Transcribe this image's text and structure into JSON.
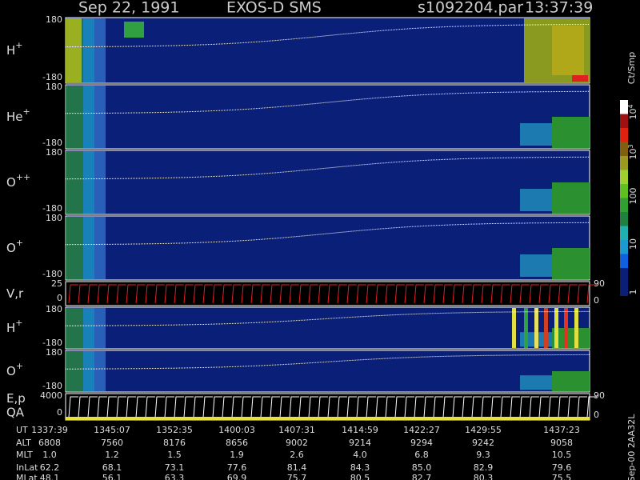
{
  "header": {
    "date": "Sep 22, 1991",
    "instrument": "EXOS-D SMS",
    "file": "s1092204.par",
    "time": "13:37:39"
  },
  "panels": [
    {
      "label": "H",
      "sup": "+",
      "ticks": [
        "180",
        "-180"
      ]
    },
    {
      "label": "He",
      "sup": "+",
      "ticks": [
        "180",
        "-180"
      ]
    },
    {
      "label": "O",
      "sup": "++",
      "ticks": [
        "180",
        "-180"
      ]
    },
    {
      "label": "O",
      "sup": "+",
      "ticks": [
        "180",
        "-180"
      ]
    },
    {
      "label": "V,r",
      "ticks": [
        "25",
        "0"
      ],
      "right_ticks": [
        "90",
        "0"
      ]
    },
    {
      "label": "H",
      "sup": "+",
      "ticks": [
        "180",
        "-180"
      ]
    },
    {
      "label": "O",
      "sup": "+",
      "ticks": [
        "180",
        "-180"
      ]
    },
    {
      "label": "E,p",
      "label2": "QA",
      "ticks": [
        "4000",
        "0"
      ],
      "right_ticks": [
        "90",
        "0"
      ]
    }
  ],
  "colorbar": {
    "unit": "Ct/Smp",
    "labels": [
      {
        "base": "10",
        "exp": "4"
      },
      {
        "base": "10",
        "exp": "3"
      },
      {
        "base": "100"
      },
      {
        "base": "10"
      },
      {
        "base": "1"
      }
    ]
  },
  "footer_note": "Sep-00 2AA32L",
  "table": {
    "header": [
      "UT",
      "ALT",
      "MLT",
      "InLat",
      "MLat"
    ],
    "rows": [
      [
        "1337:39",
        "1345:07",
        "1352:35",
        "1400:03",
        "1407:31",
        "1414:59",
        "1422:27",
        "1429:55",
        "1437:23"
      ],
      [
        "6808",
        "7560",
        "8176",
        "8656",
        "9002",
        "9214",
        "9294",
        "9242",
        "9058"
      ],
      [
        "1.0",
        "1.2",
        "1.5",
        "1.9",
        "2.6",
        "4.0",
        "6.8",
        "9.3",
        "10.5"
      ],
      [
        "62.2",
        "68.1",
        "73.1",
        "77.6",
        "81.4",
        "84.3",
        "85.0",
        "82.9",
        "79.6"
      ],
      [
        "48.1",
        "56.1",
        "63.3",
        "69.9",
        "75.7",
        "80.5",
        "82.7",
        "80.3",
        "75.5"
      ]
    ]
  }
}
